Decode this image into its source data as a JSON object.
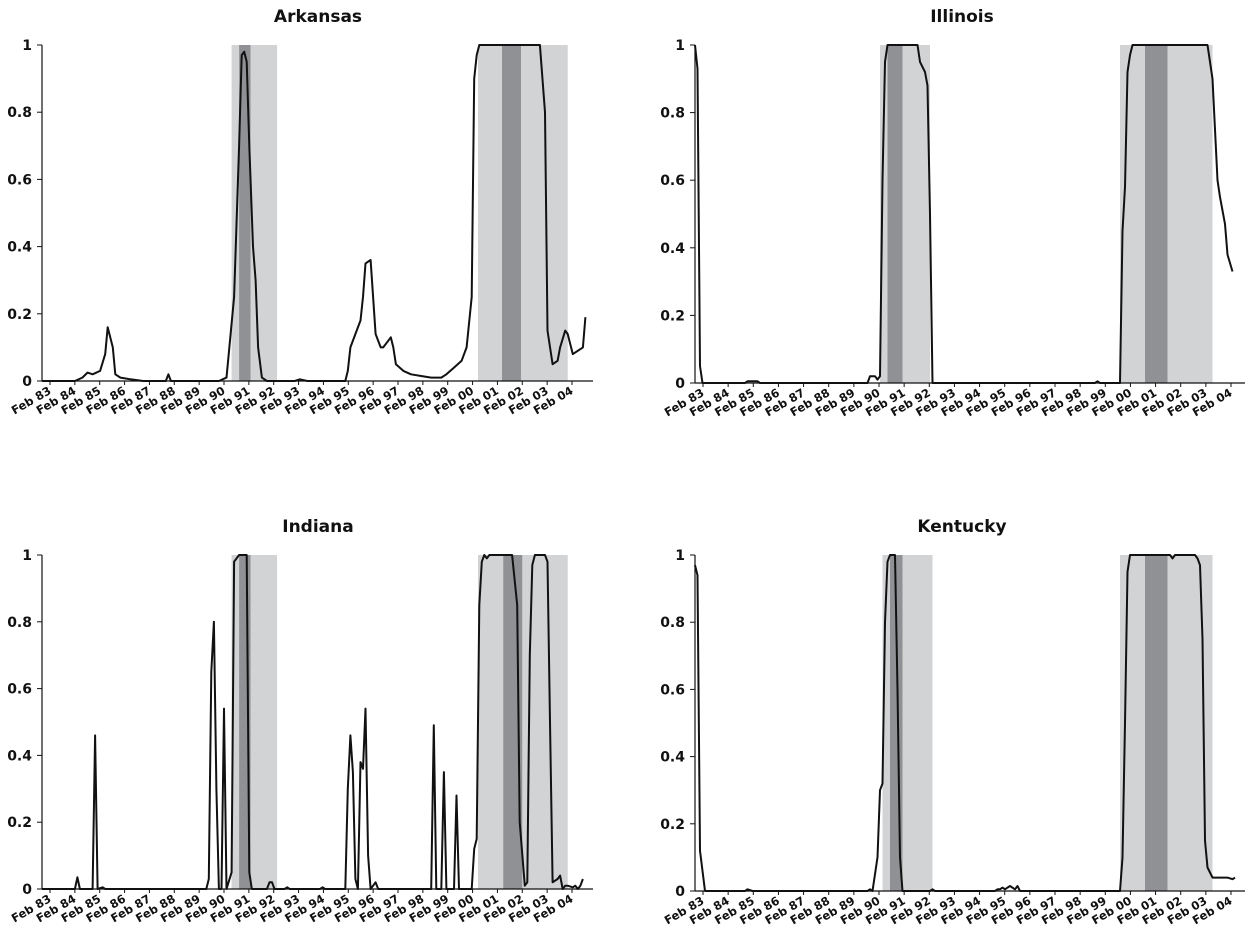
{
  "chart_data": [
    {
      "type": "line",
      "title": "Arkansas",
      "xlabel": "",
      "ylabel": "",
      "ylim": [
        0,
        1
      ],
      "y_ticks": [
        "0",
        "0.2",
        "0.4",
        "0.6",
        "0.8",
        "1"
      ],
      "x_range": [
        1983.0,
        2004.8
      ],
      "x_ticks": [
        "Feb 83",
        "Feb 84",
        "Feb 85",
        "Feb 86",
        "Feb 87",
        "Feb 88",
        "Feb 89",
        "Feb 90",
        "Feb 91",
        "Feb 92",
        "Feb 93",
        "Feb 94",
        "Feb 95",
        "Feb 96",
        "Feb 97",
        "Feb 98",
        "Feb 99",
        "Feb 00",
        "Feb 01",
        "Feb 02",
        "Feb 03",
        "Feb 04"
      ],
      "shaded_regions": [
        {
          "from": 1990.5,
          "to": 1992.3,
          "tone": "light"
        },
        {
          "from": 1990.8,
          "to": 1991.25,
          "tone": "dark"
        },
        {
          "from": 2000.25,
          "to": 2003.8,
          "tone": "light"
        },
        {
          "from": 2001.2,
          "to": 2001.95,
          "tone": "dark"
        }
      ],
      "series_points": [
        [
          1983.0,
          0
        ],
        [
          1984.3,
          0
        ],
        [
          1984.6,
          0.01
        ],
        [
          1984.8,
          0.025
        ],
        [
          1985.0,
          0.02
        ],
        [
          1985.3,
          0.03
        ],
        [
          1985.5,
          0.08
        ],
        [
          1985.6,
          0.16
        ],
        [
          1985.8,
          0.1
        ],
        [
          1985.9,
          0.02
        ],
        [
          1986.1,
          0.01
        ],
        [
          1986.5,
          0.005
        ],
        [
          1987.0,
          0
        ],
        [
          1987.9,
          0
        ],
        [
          1988.0,
          0.02
        ],
        [
          1988.1,
          0
        ],
        [
          1990.0,
          0
        ],
        [
          1990.3,
          0.01
        ],
        [
          1990.6,
          0.25
        ],
        [
          1990.8,
          0.7
        ],
        [
          1990.9,
          0.97
        ],
        [
          1991.0,
          0.98
        ],
        [
          1991.1,
          0.95
        ],
        [
          1991.2,
          0.7
        ],
        [
          1991.35,
          0.4
        ],
        [
          1991.45,
          0.3
        ],
        [
          1991.55,
          0.1
        ],
        [
          1991.7,
          0.01
        ],
        [
          1991.9,
          0
        ],
        [
          1993.0,
          0
        ],
        [
          1993.2,
          0.005
        ],
        [
          1993.5,
          0
        ],
        [
          1995.0,
          0
        ],
        [
          1995.1,
          0.03
        ],
        [
          1995.2,
          0.1
        ],
        [
          1995.4,
          0.14
        ],
        [
          1995.6,
          0.18
        ],
        [
          1995.7,
          0.25
        ],
        [
          1995.8,
          0.35
        ],
        [
          1996.0,
          0.36
        ],
        [
          1996.1,
          0.25
        ],
        [
          1996.2,
          0.14
        ],
        [
          1996.4,
          0.1
        ],
        [
          1996.5,
          0.1
        ],
        [
          1996.7,
          0.12
        ],
        [
          1996.8,
          0.13
        ],
        [
          1996.9,
          0.1
        ],
        [
          1997.0,
          0.05
        ],
        [
          1997.3,
          0.03
        ],
        [
          1997.6,
          0.02
        ],
        [
          1998.0,
          0.015
        ],
        [
          1998.4,
          0.01
        ],
        [
          1998.8,
          0.01
        ],
        [
          1999.0,
          0.02
        ],
        [
          1999.3,
          0.04
        ],
        [
          1999.6,
          0.06
        ],
        [
          1999.8,
          0.1
        ],
        [
          2000.0,
          0.25
        ],
        [
          2000.1,
          0.9
        ],
        [
          2000.2,
          0.97
        ],
        [
          2000.3,
          1
        ],
        [
          2002.7,
          1
        ],
        [
          2002.9,
          0.8
        ],
        [
          2003.0,
          0.15
        ],
        [
          2003.2,
          0.05
        ],
        [
          2003.4,
          0.06
        ],
        [
          2003.5,
          0.1
        ],
        [
          2003.7,
          0.15
        ],
        [
          2003.8,
          0.14
        ],
        [
          2004.0,
          0.08
        ],
        [
          2004.2,
          0.09
        ],
        [
          2004.4,
          0.1
        ],
        [
          2004.5,
          0.19
        ]
      ]
    },
    {
      "type": "line",
      "title": "Illinois",
      "xlabel": "",
      "ylabel": "",
      "ylim": [
        0,
        1
      ],
      "y_ticks": [
        "0",
        "0.2",
        "0.4",
        "0.6",
        "0.8",
        "1"
      ],
      "x_range": [
        1983.0,
        2005.0
      ],
      "x_ticks": [
        "Feb 83",
        "Feb 84",
        "Feb 85",
        "Feb 86",
        "Feb 87",
        "Feb 88",
        "Feb 89",
        "Feb 90",
        "Feb 91",
        "Feb 92",
        "Feb 93",
        "Feb 94",
        "Feb 95",
        "Feb 96",
        "Feb 97",
        "Feb 98",
        "Feb 99",
        "Feb 00",
        "Feb 01",
        "Feb 02",
        "Feb 03",
        "Feb 04"
      ],
      "shaded_regions": [
        {
          "from": 1990.4,
          "to": 1992.4,
          "tone": "light"
        },
        {
          "from": 1990.7,
          "to": 1991.3,
          "tone": "dark"
        },
        {
          "from": 2000.0,
          "to": 2003.7,
          "tone": "light"
        },
        {
          "from": 2001.0,
          "to": 2001.9,
          "tone": "dark"
        }
      ],
      "series_points": [
        [
          1983.0,
          1
        ],
        [
          1983.1,
          0.93
        ],
        [
          1983.2,
          0.05
        ],
        [
          1983.3,
          0
        ],
        [
          1985.0,
          0
        ],
        [
          1985.1,
          0.005
        ],
        [
          1985.5,
          0.005
        ],
        [
          1985.6,
          0
        ],
        [
          1989.9,
          0
        ],
        [
          1990.0,
          0.02
        ],
        [
          1990.2,
          0.02
        ],
        [
          1990.3,
          0.01
        ],
        [
          1990.4,
          0.02
        ],
        [
          1990.5,
          0.6
        ],
        [
          1990.6,
          0.95
        ],
        [
          1990.7,
          1
        ],
        [
          1991.9,
          1
        ],
        [
          1992.0,
          0.95
        ],
        [
          1992.2,
          0.92
        ],
        [
          1992.3,
          0.88
        ],
        [
          1992.4,
          0.5
        ],
        [
          1992.5,
          0
        ],
        [
          1999.0,
          0
        ],
        [
          1999.1,
          0.005
        ],
        [
          1999.2,
          0
        ],
        [
          2000.0,
          0
        ],
        [
          2000.1,
          0.45
        ],
        [
          2000.2,
          0.58
        ],
        [
          2000.3,
          0.92
        ],
        [
          2000.4,
          0.97
        ],
        [
          2000.5,
          1
        ],
        [
          2003.5,
          1
        ],
        [
          2003.7,
          0.9
        ],
        [
          2003.9,
          0.6
        ],
        [
          2004.0,
          0.55
        ],
        [
          2004.2,
          0.47
        ],
        [
          2004.3,
          0.38
        ],
        [
          2004.5,
          0.33
        ]
      ]
    },
    {
      "type": "line",
      "title": "Indiana",
      "xlabel": "",
      "ylabel": "",
      "ylim": [
        0,
        1
      ],
      "y_ticks": [
        "0",
        "0.2",
        "0.4",
        "0.6",
        "0.8",
        "1"
      ],
      "x_range": [
        1983.0,
        2004.8
      ],
      "x_ticks": [
        "Feb 83",
        "Feb 84",
        "Feb 85",
        "Feb 86",
        "Feb 87",
        "Feb 88",
        "Feb 89",
        "Feb 90",
        "Feb 91",
        "Feb 92",
        "Feb 93",
        "Feb 94",
        "Feb 95",
        "Feb 96",
        "Feb 97",
        "Feb 98",
        "Feb 99",
        "Feb 00",
        "Feb 01",
        "Feb 02",
        "Feb 03",
        "Feb 04"
      ],
      "shaded_regions": [
        {
          "from": 1990.5,
          "to": 1992.3,
          "tone": "light"
        },
        {
          "from": 1990.8,
          "to": 1991.25,
          "tone": "dark"
        },
        {
          "from": 2000.25,
          "to": 2003.8,
          "tone": "light"
        },
        {
          "from": 2001.25,
          "to": 2002.0,
          "tone": "dark"
        }
      ],
      "series_points": [
        [
          1983.0,
          0
        ],
        [
          1984.3,
          0
        ],
        [
          1984.4,
          0.035
        ],
        [
          1984.5,
          0
        ],
        [
          1985.0,
          0
        ],
        [
          1985.1,
          0.46
        ],
        [
          1985.2,
          0
        ],
        [
          1985.4,
          0.005
        ],
        [
          1985.5,
          0
        ],
        [
          1989.5,
          0
        ],
        [
          1989.6,
          0.03
        ],
        [
          1989.7,
          0.65
        ],
        [
          1989.8,
          0.8
        ],
        [
          1989.9,
          0.3
        ],
        [
          1990.0,
          0
        ],
        [
          1990.1,
          0
        ],
        [
          1990.2,
          0.54
        ],
        [
          1990.3,
          0
        ],
        [
          1990.5,
          0.05
        ],
        [
          1990.6,
          0.98
        ],
        [
          1990.8,
          1
        ],
        [
          1991.0,
          1
        ],
        [
          1991.1,
          1
        ],
        [
          1991.2,
          0.05
        ],
        [
          1991.3,
          0
        ],
        [
          1991.9,
          0
        ],
        [
          1992.0,
          0.02
        ],
        [
          1992.1,
          0.02
        ],
        [
          1992.2,
          0
        ],
        [
          1992.6,
          0
        ],
        [
          1992.7,
          0.005
        ],
        [
          1992.8,
          0
        ],
        [
          1994.0,
          0
        ],
        [
          1994.1,
          0.005
        ],
        [
          1994.2,
          0
        ],
        [
          1995.0,
          0
        ],
        [
          1995.1,
          0.3
        ],
        [
          1995.2,
          0.46
        ],
        [
          1995.3,
          0.35
        ],
        [
          1995.4,
          0.03
        ],
        [
          1995.5,
          0
        ],
        [
          1995.6,
          0.38
        ],
        [
          1995.7,
          0.36
        ],
        [
          1995.8,
          0.54
        ],
        [
          1995.9,
          0.1
        ],
        [
          1996.0,
          0
        ],
        [
          1996.2,
          0.02
        ],
        [
          1996.3,
          0
        ],
        [
          1998.4,
          0
        ],
        [
          1998.5,
          0.49
        ],
        [
          1998.6,
          0
        ],
        [
          1998.8,
          0
        ],
        [
          1998.9,
          0.35
        ],
        [
          1999.0,
          0
        ],
        [
          1999.3,
          0
        ],
        [
          1999.4,
          0.28
        ],
        [
          1999.5,
          0
        ],
        [
          2000.0,
          0
        ],
        [
          2000.1,
          0.12
        ],
        [
          2000.2,
          0.15
        ],
        [
          2000.3,
          0.85
        ],
        [
          2000.4,
          0.98
        ],
        [
          2000.5,
          1
        ],
        [
          2000.6,
          0.99
        ],
        [
          2000.7,
          1
        ],
        [
          2001.6,
          1
        ],
        [
          2001.8,
          0.85
        ],
        [
          2001.9,
          0.2
        ],
        [
          2002.1,
          0.01
        ],
        [
          2002.2,
          0.02
        ],
        [
          2002.3,
          0.7
        ],
        [
          2002.4,
          0.97
        ],
        [
          2002.5,
          1
        ],
        [
          2002.9,
          1
        ],
        [
          2003.0,
          0.98
        ],
        [
          2003.1,
          0.5
        ],
        [
          2003.2,
          0.02
        ],
        [
          2003.4,
          0.03
        ],
        [
          2003.5,
          0.04
        ],
        [
          2003.6,
          0
        ],
        [
          2003.7,
          0.01
        ],
        [
          2003.8,
          0.01
        ],
        [
          2004.0,
          0.005
        ],
        [
          2004.1,
          0.01
        ],
        [
          2004.2,
          0
        ],
        [
          2004.3,
          0.01
        ],
        [
          2004.4,
          0.03
        ]
      ]
    },
    {
      "type": "line",
      "title": "Kentucky",
      "xlabel": "",
      "ylabel": "",
      "ylim": [
        0,
        1
      ],
      "y_ticks": [
        "0",
        "0.2",
        "0.4",
        "0.6",
        "0.8",
        "1"
      ],
      "x_range": [
        1983.0,
        2005.0
      ],
      "x_ticks": [
        "Feb 83",
        "Feb 84",
        "Feb 85",
        "Feb 86",
        "Feb 87",
        "Feb 88",
        "Feb 89",
        "Feb 90",
        "Feb 91",
        "Feb 92",
        "Feb 93",
        "Feb 94",
        "Feb 95",
        "Feb 96",
        "Feb 97",
        "Feb 98",
        "Feb 99",
        "Feb 00",
        "Feb 01",
        "Feb 02",
        "Feb 03",
        "Feb 04"
      ],
      "shaded_regions": [
        {
          "from": 1990.5,
          "to": 1992.5,
          "tone": "light"
        },
        {
          "from": 1990.8,
          "to": 1991.3,
          "tone": "dark"
        },
        {
          "from": 2000.0,
          "to": 2003.7,
          "tone": "light"
        },
        {
          "from": 2001.0,
          "to": 2001.9,
          "tone": "dark"
        }
      ],
      "series_points": [
        [
          1983.0,
          0.97
        ],
        [
          1983.1,
          0.94
        ],
        [
          1983.2,
          0.12
        ],
        [
          1983.4,
          0
        ],
        [
          1985.0,
          0
        ],
        [
          1985.1,
          0.005
        ],
        [
          1985.3,
          0
        ],
        [
          1989.9,
          0
        ],
        [
          1990.0,
          0.005
        ],
        [
          1990.1,
          0
        ],
        [
          1990.3,
          0.1
        ],
        [
          1990.4,
          0.3
        ],
        [
          1990.5,
          0.32
        ],
        [
          1990.6,
          0.8
        ],
        [
          1990.7,
          0.98
        ],
        [
          1990.8,
          1
        ],
        [
          1991.0,
          1
        ],
        [
          1991.1,
          0.6
        ],
        [
          1991.2,
          0.1
        ],
        [
          1991.3,
          0
        ],
        [
          1992.4,
          0
        ],
        [
          1992.5,
          0.005
        ],
        [
          1992.6,
          0
        ],
        [
          1995.0,
          0
        ],
        [
          1995.1,
          0.005
        ],
        [
          1995.2,
          0.005
        ],
        [
          1995.3,
          0.01
        ],
        [
          1995.4,
          0.005
        ],
        [
          1995.5,
          0.01
        ],
        [
          1995.6,
          0.015
        ],
        [
          1995.8,
          0.005
        ],
        [
          1995.9,
          0.015
        ],
        [
          1996.0,
          0
        ],
        [
          2000.0,
          0
        ],
        [
          2000.1,
          0.1
        ],
        [
          2000.2,
          0.5
        ],
        [
          2000.3,
          0.95
        ],
        [
          2000.4,
          1
        ],
        [
          2002.0,
          1
        ],
        [
          2002.1,
          0.99
        ],
        [
          2002.2,
          1
        ],
        [
          2003.0,
          1
        ],
        [
          2003.1,
          0.99
        ],
        [
          2003.2,
          0.97
        ],
        [
          2003.3,
          0.75
        ],
        [
          2003.4,
          0.15
        ],
        [
          2003.5,
          0.07
        ],
        [
          2003.7,
          0.04
        ],
        [
          2004.3,
          0.04
        ],
        [
          2004.5,
          0.035
        ],
        [
          2004.6,
          0.04
        ]
      ]
    }
  ]
}
